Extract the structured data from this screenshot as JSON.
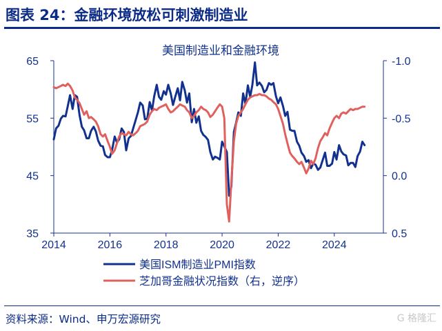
{
  "figure": {
    "title": "图表 24：金融环境放松可刺激制造业",
    "source": "资料来源：Wind、申万宏源研究",
    "watermark": "G 格隆汇"
  },
  "colors": {
    "ism": "#12318f",
    "fci": "#e0605d",
    "axis": "#12318f",
    "text": "#12318f"
  },
  "chart_data": {
    "type": "line",
    "title": "美国制造业和金融环境",
    "grid": false,
    "legend_position": "bottom-left",
    "x_axis": {
      "min": 2014,
      "max": 2025.75,
      "ticks": [
        "2014",
        "2016",
        "2018",
        "2020",
        "2022",
        "2024"
      ]
    },
    "y_left": {
      "min": 35,
      "max": 65,
      "ticks": [
        "35",
        "45",
        "55",
        "65"
      ]
    },
    "y_right": {
      "min": 0.5,
      "max": -1.0,
      "inverted": true,
      "ticks": [
        "-1.0",
        "-0.5",
        "0.0",
        "0.5"
      ]
    },
    "series": [
      {
        "name": "美国ISM制造业PMI指数",
        "axis": "left",
        "points": [
          [
            2014.0,
            51.3
          ],
          [
            2014.08,
            53.2
          ],
          [
            2014.17,
            53.7
          ],
          [
            2014.25,
            54.9
          ],
          [
            2014.33,
            55.4
          ],
          [
            2014.42,
            55.3
          ],
          [
            2014.5,
            57.1
          ],
          [
            2014.58,
            59.0
          ],
          [
            2014.67,
            56.6
          ],
          [
            2014.75,
            59.0
          ],
          [
            2014.83,
            58.7
          ],
          [
            2014.92,
            55.5
          ],
          [
            2015.0,
            53.5
          ],
          [
            2015.08,
            52.9
          ],
          [
            2015.17,
            51.5
          ],
          [
            2015.25,
            51.5
          ],
          [
            2015.33,
            52.8
          ],
          [
            2015.42,
            53.5
          ],
          [
            2015.5,
            52.7
          ],
          [
            2015.58,
            51.1
          ],
          [
            2015.67,
            50.2
          ],
          [
            2015.75,
            50.1
          ],
          [
            2015.83,
            48.6
          ],
          [
            2015.92,
            48.2
          ],
          [
            2016.0,
            48.2
          ],
          [
            2016.08,
            49.5
          ],
          [
            2016.17,
            51.8
          ],
          [
            2016.25,
            50.8
          ],
          [
            2016.33,
            51.3
          ],
          [
            2016.42,
            53.2
          ],
          [
            2016.5,
            52.6
          ],
          [
            2016.58,
            49.4
          ],
          [
            2016.67,
            51.5
          ],
          [
            2016.75,
            51.9
          ],
          [
            2016.83,
            53.2
          ],
          [
            2016.92,
            54.7
          ],
          [
            2017.0,
            56.0
          ],
          [
            2017.08,
            57.7
          ],
          [
            2017.17,
            57.2
          ],
          [
            2017.25,
            54.8
          ],
          [
            2017.33,
            54.9
          ],
          [
            2017.42,
            57.8
          ],
          [
            2017.5,
            56.3
          ],
          [
            2017.58,
            58.8
          ],
          [
            2017.67,
            60.8
          ],
          [
            2017.75,
            58.7
          ],
          [
            2017.83,
            58.2
          ],
          [
            2017.92,
            59.7
          ],
          [
            2018.0,
            59.1
          ],
          [
            2018.08,
            60.8
          ],
          [
            2018.17,
            59.3
          ],
          [
            2018.25,
            57.3
          ],
          [
            2018.33,
            58.7
          ],
          [
            2018.42,
            60.2
          ],
          [
            2018.5,
            58.1
          ],
          [
            2018.58,
            61.3
          ],
          [
            2018.67,
            59.8
          ],
          [
            2018.75,
            57.7
          ],
          [
            2018.83,
            59.3
          ],
          [
            2018.92,
            54.3
          ],
          [
            2019.0,
            56.6
          ],
          [
            2019.08,
            54.2
          ],
          [
            2019.17,
            55.3
          ],
          [
            2019.25,
            52.8
          ],
          [
            2019.33,
            52.1
          ],
          [
            2019.42,
            51.7
          ],
          [
            2019.5,
            51.2
          ],
          [
            2019.58,
            49.1
          ],
          [
            2019.67,
            47.8
          ],
          [
            2019.75,
            48.3
          ],
          [
            2019.83,
            48.1
          ],
          [
            2019.92,
            47.8
          ],
          [
            2020.0,
            50.9
          ],
          [
            2020.08,
            50.1
          ],
          [
            2020.17,
            49.1
          ],
          [
            2020.25,
            41.5
          ],
          [
            2020.33,
            43.1
          ],
          [
            2020.42,
            52.6
          ],
          [
            2020.5,
            54.2
          ],
          [
            2020.58,
            56.0
          ],
          [
            2020.67,
            55.4
          ],
          [
            2020.75,
            59.3
          ],
          [
            2020.83,
            57.5
          ],
          [
            2020.92,
            60.7
          ],
          [
            2021.0,
            58.7
          ],
          [
            2021.08,
            60.8
          ],
          [
            2021.17,
            64.7
          ],
          [
            2021.25,
            60.7
          ],
          [
            2021.33,
            61.2
          ],
          [
            2021.42,
            60.6
          ],
          [
            2021.5,
            59.5
          ],
          [
            2021.58,
            59.9
          ],
          [
            2021.67,
            61.1
          ],
          [
            2021.75,
            60.8
          ],
          [
            2021.83,
            61.1
          ],
          [
            2021.92,
            58.8
          ],
          [
            2022.0,
            57.6
          ],
          [
            2022.08,
            58.6
          ],
          [
            2022.17,
            57.1
          ],
          [
            2022.25,
            55.4
          ],
          [
            2022.33,
            56.1
          ],
          [
            2022.42,
            53.0
          ],
          [
            2022.5,
            52.8
          ],
          [
            2022.58,
            52.8
          ],
          [
            2022.67,
            50.9
          ],
          [
            2022.75,
            50.2
          ],
          [
            2022.83,
            49.0
          ],
          [
            2022.92,
            48.4
          ],
          [
            2023.0,
            47.4
          ],
          [
            2023.08,
            47.7
          ],
          [
            2023.17,
            46.3
          ],
          [
            2023.25,
            47.1
          ],
          [
            2023.33,
            46.9
          ],
          [
            2023.42,
            46.0
          ],
          [
            2023.5,
            46.4
          ],
          [
            2023.58,
            47.6
          ],
          [
            2023.67,
            49.0
          ],
          [
            2023.75,
            46.7
          ],
          [
            2023.83,
            46.7
          ],
          [
            2023.92,
            47.1
          ],
          [
            2024.0,
            49.1
          ],
          [
            2024.08,
            47.8
          ],
          [
            2024.17,
            50.3
          ],
          [
            2024.25,
            49.2
          ],
          [
            2024.33,
            48.7
          ],
          [
            2024.42,
            48.5
          ],
          [
            2024.5,
            46.8
          ],
          [
            2024.58,
            47.2
          ],
          [
            2024.67,
            47.2
          ],
          [
            2024.75,
            46.5
          ],
          [
            2024.83,
            48.4
          ],
          [
            2024.92,
            49.2
          ],
          [
            2025.0,
            50.9
          ],
          [
            2025.08,
            50.3
          ]
        ]
      },
      {
        "name": "芝加哥金融状况指数（右，逆序）",
        "axis": "right",
        "points": [
          [
            2014.0,
            -0.77
          ],
          [
            2014.08,
            -0.76
          ],
          [
            2014.17,
            -0.77
          ],
          [
            2014.25,
            -0.78
          ],
          [
            2014.33,
            -0.79
          ],
          [
            2014.42,
            -0.78
          ],
          [
            2014.5,
            -0.8
          ],
          [
            2014.58,
            -0.78
          ],
          [
            2014.67,
            -0.74
          ],
          [
            2014.75,
            -0.68
          ],
          [
            2014.83,
            -0.66
          ],
          [
            2014.92,
            -0.63
          ],
          [
            2015.0,
            -0.58
          ],
          [
            2015.08,
            -0.53
          ],
          [
            2015.17,
            -0.56
          ],
          [
            2015.25,
            -0.5
          ],
          [
            2015.33,
            -0.51
          ],
          [
            2015.42,
            -0.49
          ],
          [
            2015.5,
            -0.47
          ],
          [
            2015.58,
            -0.43
          ],
          [
            2015.67,
            -0.36
          ],
          [
            2015.75,
            -0.34
          ],
          [
            2015.83,
            -0.36
          ],
          [
            2015.92,
            -0.3
          ],
          [
            2016.0,
            -0.25
          ],
          [
            2016.08,
            -0.19
          ],
          [
            2016.17,
            -0.22
          ],
          [
            2016.25,
            -0.28
          ],
          [
            2016.33,
            -0.34
          ],
          [
            2016.42,
            -0.37
          ],
          [
            2016.5,
            -0.36
          ],
          [
            2016.58,
            -0.35
          ],
          [
            2016.67,
            -0.38
          ],
          [
            2016.75,
            -0.36
          ],
          [
            2016.83,
            -0.35
          ],
          [
            2016.92,
            -0.37
          ],
          [
            2017.0,
            -0.39
          ],
          [
            2017.08,
            -0.43
          ],
          [
            2017.17,
            -0.44
          ],
          [
            2017.25,
            -0.45
          ],
          [
            2017.33,
            -0.47
          ],
          [
            2017.42,
            -0.53
          ],
          [
            2017.5,
            -0.56
          ],
          [
            2017.58,
            -0.58
          ],
          [
            2017.67,
            -0.57
          ],
          [
            2017.75,
            -0.59
          ],
          [
            2017.83,
            -0.6
          ],
          [
            2017.92,
            -0.61
          ],
          [
            2018.0,
            -0.62
          ],
          [
            2018.08,
            -0.58
          ],
          [
            2018.17,
            -0.55
          ],
          [
            2018.25,
            -0.56
          ],
          [
            2018.33,
            -0.58
          ],
          [
            2018.42,
            -0.6
          ],
          [
            2018.5,
            -0.62
          ],
          [
            2018.58,
            -0.61
          ],
          [
            2018.67,
            -0.6
          ],
          [
            2018.75,
            -0.57
          ],
          [
            2018.83,
            -0.55
          ],
          [
            2018.92,
            -0.5
          ],
          [
            2019.0,
            -0.52
          ],
          [
            2019.08,
            -0.55
          ],
          [
            2019.17,
            -0.57
          ],
          [
            2019.25,
            -0.6
          ],
          [
            2019.33,
            -0.58
          ],
          [
            2019.42,
            -0.57
          ],
          [
            2019.5,
            -0.55
          ],
          [
            2019.58,
            -0.51
          ],
          [
            2019.67,
            -0.53
          ],
          [
            2019.75,
            -0.56
          ],
          [
            2019.83,
            -0.59
          ],
          [
            2019.92,
            -0.62
          ],
          [
            2020.0,
            -0.6
          ],
          [
            2020.08,
            -0.5
          ],
          [
            2020.17,
            0.25
          ],
          [
            2020.25,
            0.4
          ],
          [
            2020.33,
            0.05
          ],
          [
            2020.42,
            -0.3
          ],
          [
            2020.5,
            -0.45
          ],
          [
            2020.58,
            -0.52
          ],
          [
            2020.67,
            -0.55
          ],
          [
            2020.75,
            -0.58
          ],
          [
            2020.83,
            -0.62
          ],
          [
            2020.92,
            -0.66
          ],
          [
            2021.0,
            -0.68
          ],
          [
            2021.08,
            -0.69
          ],
          [
            2021.17,
            -0.7
          ],
          [
            2021.25,
            -0.7
          ],
          [
            2021.33,
            -0.71
          ],
          [
            2021.42,
            -0.7
          ],
          [
            2021.5,
            -0.7
          ],
          [
            2021.58,
            -0.69
          ],
          [
            2021.67,
            -0.67
          ],
          [
            2021.75,
            -0.66
          ],
          [
            2021.83,
            -0.64
          ],
          [
            2021.92,
            -0.62
          ],
          [
            2022.0,
            -0.58
          ],
          [
            2022.08,
            -0.52
          ],
          [
            2022.17,
            -0.45
          ],
          [
            2022.25,
            -0.36
          ],
          [
            2022.33,
            -0.28
          ],
          [
            2022.42,
            -0.2
          ],
          [
            2022.5,
            -0.17
          ],
          [
            2022.58,
            -0.15
          ],
          [
            2022.67,
            -0.12
          ],
          [
            2022.75,
            -0.1
          ],
          [
            2022.83,
            -0.12
          ],
          [
            2022.92,
            -0.07
          ],
          [
            2023.0,
            -0.02
          ],
          [
            2023.08,
            -0.06
          ],
          [
            2023.17,
            -0.13
          ],
          [
            2023.25,
            -0.1
          ],
          [
            2023.33,
            -0.15
          ],
          [
            2023.42,
            -0.24
          ],
          [
            2023.5,
            -0.3
          ],
          [
            2023.58,
            -0.33
          ],
          [
            2023.67,
            -0.37
          ],
          [
            2023.75,
            -0.35
          ],
          [
            2023.83,
            -0.41
          ],
          [
            2023.92,
            -0.46
          ],
          [
            2024.0,
            -0.5
          ],
          [
            2024.08,
            -0.52
          ],
          [
            2024.17,
            -0.5
          ],
          [
            2024.25,
            -0.54
          ],
          [
            2024.33,
            -0.55
          ],
          [
            2024.42,
            -0.54
          ],
          [
            2024.5,
            -0.56
          ],
          [
            2024.58,
            -0.58
          ],
          [
            2024.67,
            -0.57
          ],
          [
            2024.75,
            -0.58
          ],
          [
            2024.83,
            -0.58
          ],
          [
            2024.92,
            -0.59
          ],
          [
            2025.0,
            -0.6
          ],
          [
            2025.08,
            -0.6
          ]
        ]
      }
    ]
  }
}
